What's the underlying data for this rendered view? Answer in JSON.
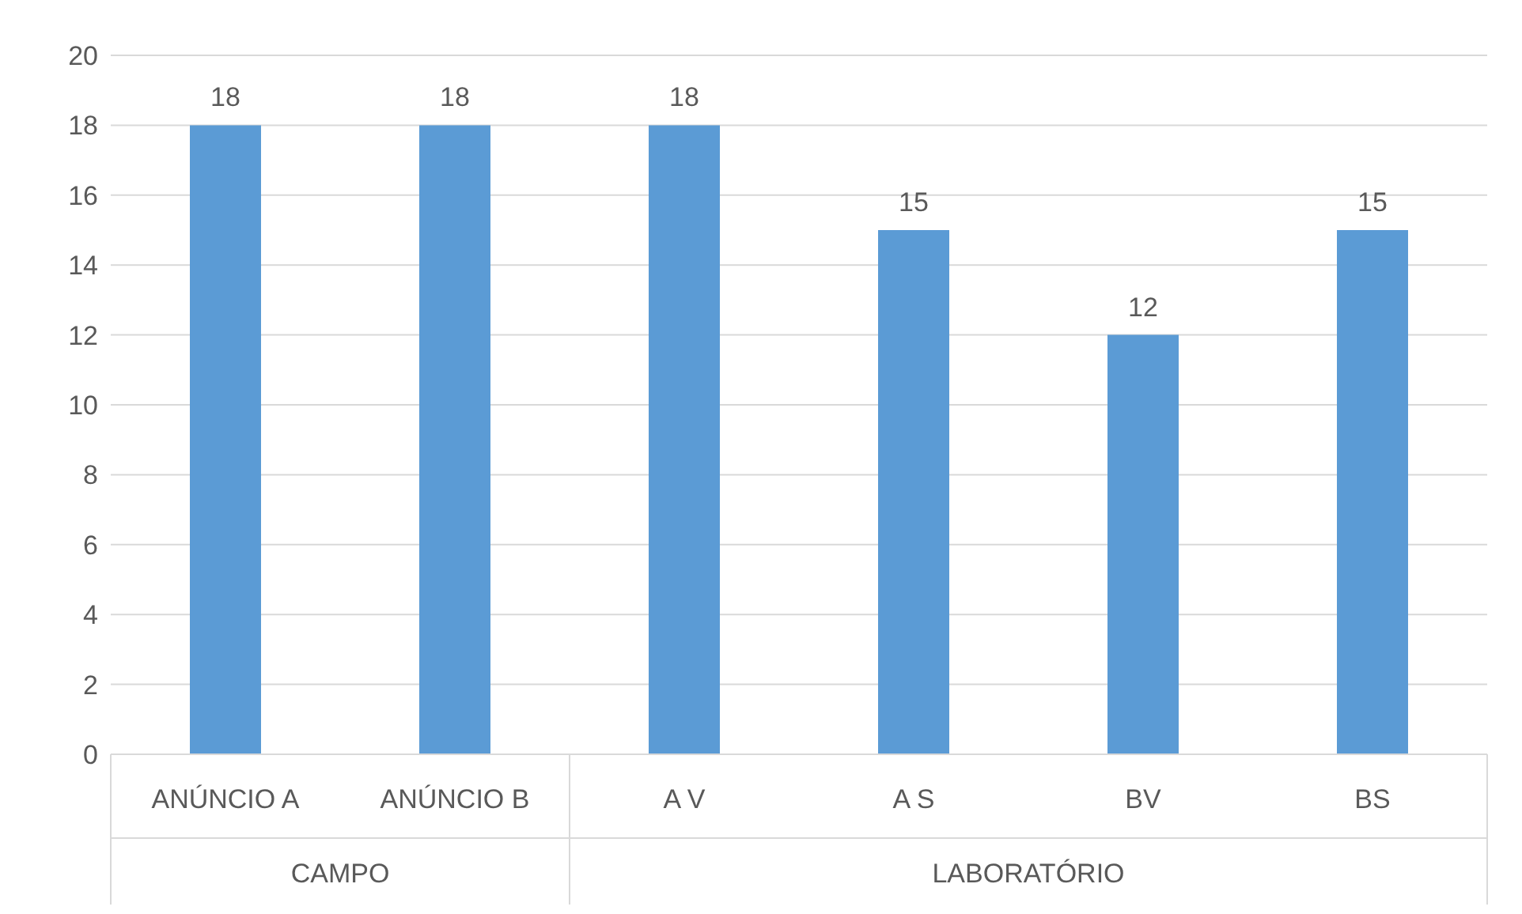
{
  "chart_data": {
    "type": "bar",
    "categories": [
      "ANÚNCIO A",
      "ANÚNCIO B",
      "A V",
      "A S",
      "BV",
      "BS"
    ],
    "values": [
      18,
      18,
      18,
      15,
      12,
      15
    ],
    "color": "#5b9bd5",
    "ylim": [
      0,
      20
    ],
    "yticks": [
      0,
      2,
      4,
      6,
      8,
      10,
      12,
      14,
      16,
      18,
      20
    ],
    "grid": "y",
    "data_labels": true,
    "annotations": [
      "CAMPO",
      "LABORATÓRIO"
    ]
  }
}
